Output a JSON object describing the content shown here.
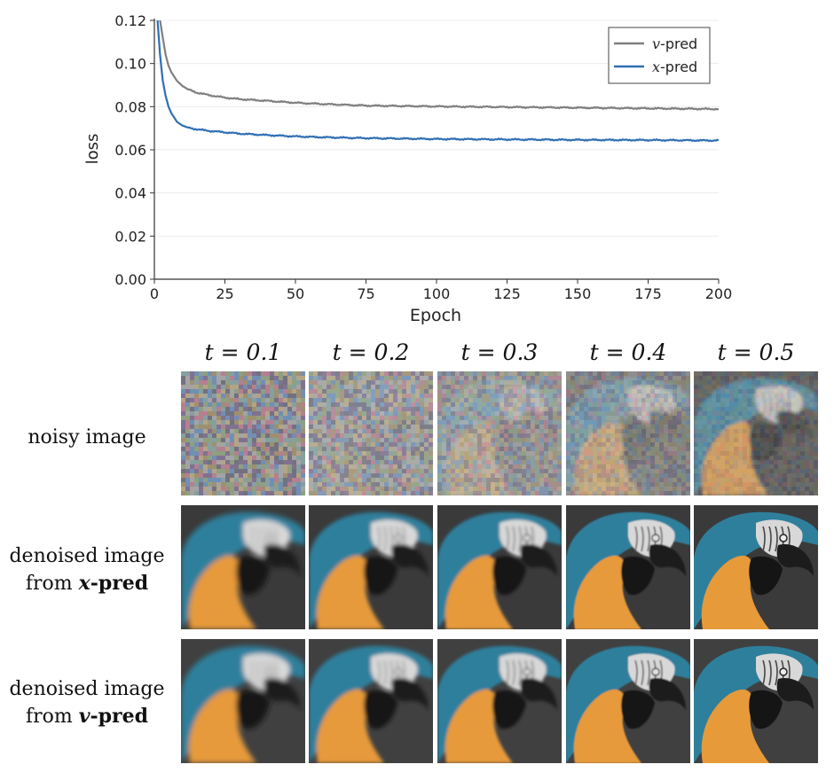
{
  "chart_data": {
    "type": "line",
    "xlabel": "Epoch",
    "ylabel": "loss",
    "xlim": [
      0,
      200
    ],
    "ylim": [
      0,
      0.12
    ],
    "xticks": [
      "0",
      "25",
      "50",
      "75",
      "100",
      "125",
      "150",
      "175",
      "200"
    ],
    "yticks": [
      "0.00",
      "0.02",
      "0.04",
      "0.06",
      "0.08",
      "0.10",
      "0.12"
    ],
    "grid": "horizontal",
    "legend_position": "top-right",
    "series": [
      {
        "name": "v-pred",
        "color": "#7f7f7f",
        "x": [
          1,
          2,
          3,
          4,
          5,
          6,
          8,
          10,
          12,
          15,
          20,
          25,
          30,
          40,
          50,
          60,
          75,
          100,
          125,
          150,
          175,
          200
        ],
        "y": [
          0.125,
          0.12,
          0.112,
          0.104,
          0.099,
          0.096,
          0.092,
          0.0895,
          0.088,
          0.0865,
          0.0852,
          0.0842,
          0.0835,
          0.0827,
          0.0818,
          0.0812,
          0.0805,
          0.0801,
          0.0798,
          0.0795,
          0.0792,
          0.0789
        ]
      },
      {
        "name": "x-pred",
        "color": "#2f6fb4",
        "x": [
          1,
          2,
          3,
          4,
          5,
          6,
          8,
          10,
          12,
          15,
          20,
          25,
          30,
          40,
          50,
          60,
          75,
          100,
          125,
          150,
          175,
          200
        ],
        "y": [
          0.122,
          0.104,
          0.092,
          0.085,
          0.08,
          0.077,
          0.073,
          0.0712,
          0.0703,
          0.0695,
          0.0687,
          0.0681,
          0.0675,
          0.0668,
          0.0662,
          0.0658,
          0.0654,
          0.065,
          0.0648,
          0.0646,
          0.0645,
          0.0643
        ]
      }
    ]
  },
  "legend": {
    "v_label": "v",
    "x_label": "x",
    "suffix": "-pred"
  },
  "grid_figure": {
    "t_headers": [
      "t = 0.1",
      "t = 0.2",
      "t = 0.3",
      "t = 0.4",
      "t = 0.5"
    ],
    "rows": [
      {
        "line1": "noisy image",
        "line2": ""
      },
      {
        "line1": "denoised image",
        "line2_prefix": "from ",
        "line2_bold": "x",
        "line2_suffix": "-pred"
      },
      {
        "line1": "denoised image",
        "line2_prefix": "from ",
        "line2_bold": "v",
        "line2_suffix": "-pred"
      }
    ],
    "colors": {
      "parrot_blue": "#2e7f9c",
      "parrot_orange": "#e69a3a",
      "background": "#3a3a3a"
    }
  }
}
